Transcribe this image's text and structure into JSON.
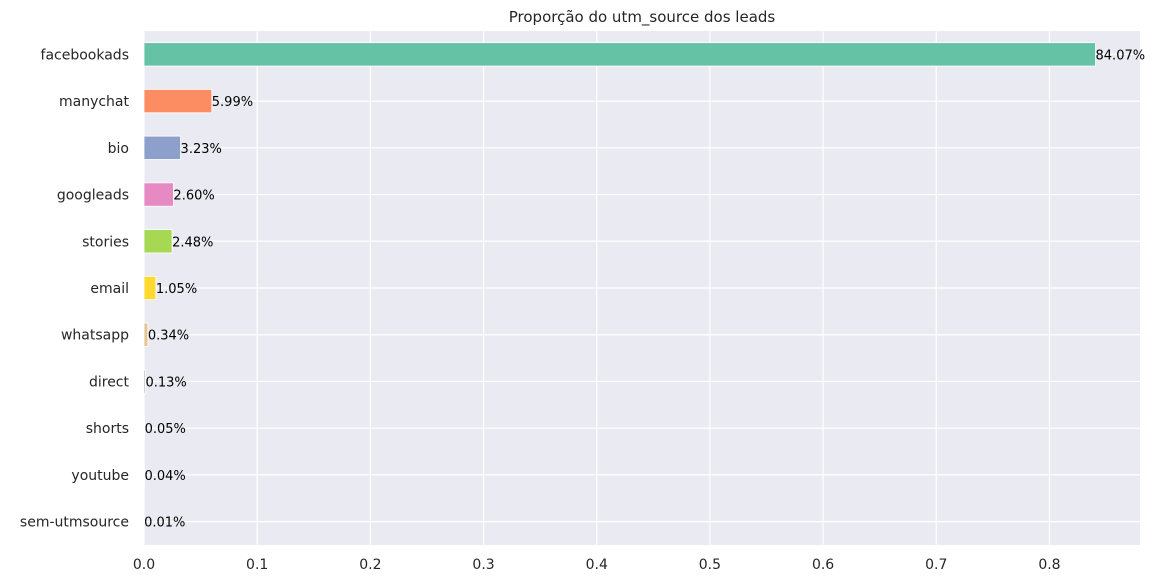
{
  "chart_data": {
    "type": "bar",
    "orientation": "horizontal",
    "title": "Proporção do utm_source dos leads",
    "xlabel": "",
    "ylabel": "",
    "xlim": [
      0,
      0.88
    ],
    "xticks": [
      0.0,
      0.1,
      0.2,
      0.3,
      0.4,
      0.5,
      0.6,
      0.7,
      0.8
    ],
    "xtick_labels": [
      "0.0",
      "0.1",
      "0.2",
      "0.3",
      "0.4",
      "0.5",
      "0.6",
      "0.7",
      "0.8"
    ],
    "grid": true,
    "background": "#EAEAF2",
    "categories": [
      "facebookads",
      "manychat",
      "bio",
      "googleads",
      "stories",
      "email",
      "whatsapp",
      "direct",
      "shorts",
      "youtube",
      "sem-utmsource"
    ],
    "values": [
      0.8407,
      0.0599,
      0.0323,
      0.026,
      0.0248,
      0.0105,
      0.0034,
      0.0013,
      0.0005,
      0.0004,
      0.0001
    ],
    "data_labels": [
      "84.07%",
      "5.99%",
      "3.23%",
      "2.60%",
      "2.48%",
      "1.05%",
      "0.34%",
      "0.13%",
      "0.05%",
      "0.04%",
      "0.01%"
    ],
    "colors": [
      "#66C2A5",
      "#FC8D62",
      "#8DA0CB",
      "#E78AC3",
      "#A6D854",
      "#FFD92F",
      "#E5C494",
      "#B3B3B3",
      "#66C2A5",
      "#FC8D62",
      "#8DA0CB"
    ]
  }
}
